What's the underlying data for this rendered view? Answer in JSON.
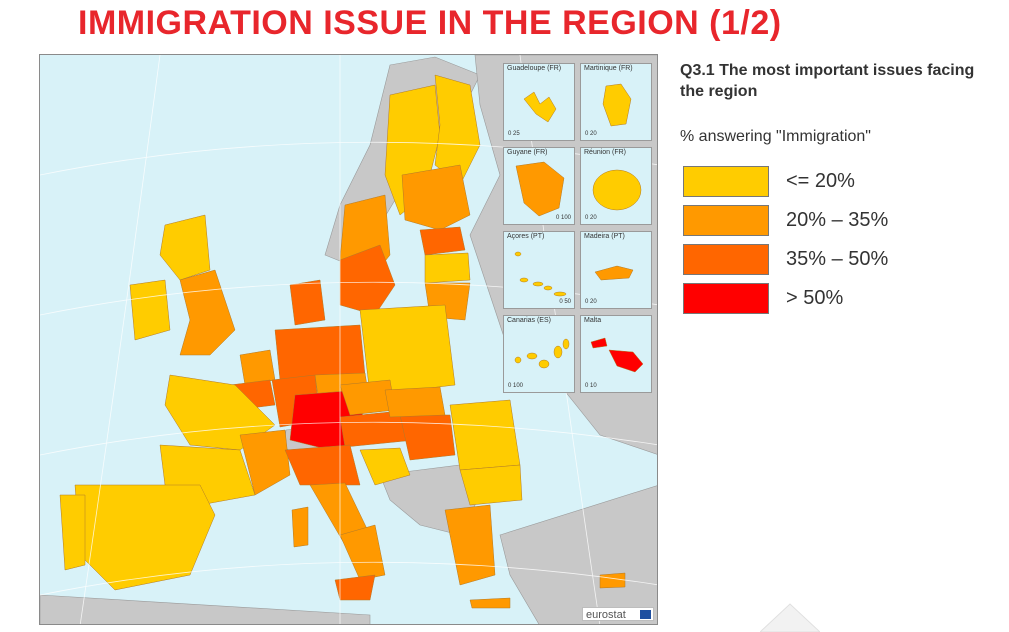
{
  "title": "IMMIGRATION ISSUE IN THE REGION (1/2)",
  "question": "Q3.1 The most important issues facing the region",
  "subtitle": "% answering \"Immigration\"",
  "colors": {
    "title": "#e8262c",
    "sea": "#d8f2f8",
    "non_eu_land": "#c8c8c8",
    "class_1": "#ffcc00",
    "class_2": "#ff9900",
    "class_3": "#ff6600",
    "class_4": "#ff0000"
  },
  "legend": [
    {
      "label": "<= 20%",
      "color": "#ffcc00"
    },
    {
      "label": "20% – 35%",
      "color": "#ff9900"
    },
    {
      "label": "35% – 50%",
      "color": "#ff6600"
    },
    {
      "label": "> 50%",
      "color": "#ff0000"
    }
  ],
  "insets": [
    {
      "label": "Guadeloupe (FR)",
      "scale": "0   25",
      "class": 1
    },
    {
      "label": "Martinique (FR)",
      "scale": "0   20",
      "class": 1
    },
    {
      "label": "Guyane (FR)",
      "scale": "0   100",
      "class": 2
    },
    {
      "label": "Réunion (FR)",
      "scale": "0   20",
      "class": 1
    },
    {
      "label": "Açores (PT)",
      "scale": "0   50",
      "class": 1
    },
    {
      "label": "Madeira (PT)",
      "scale": "0   20",
      "class": 2
    },
    {
      "label": "Canarias (ES)",
      "scale": "0   100",
      "class": 1
    },
    {
      "label": "Malta",
      "scale": "0   10",
      "class": 4
    }
  ],
  "source_logo": "eurostat"
}
